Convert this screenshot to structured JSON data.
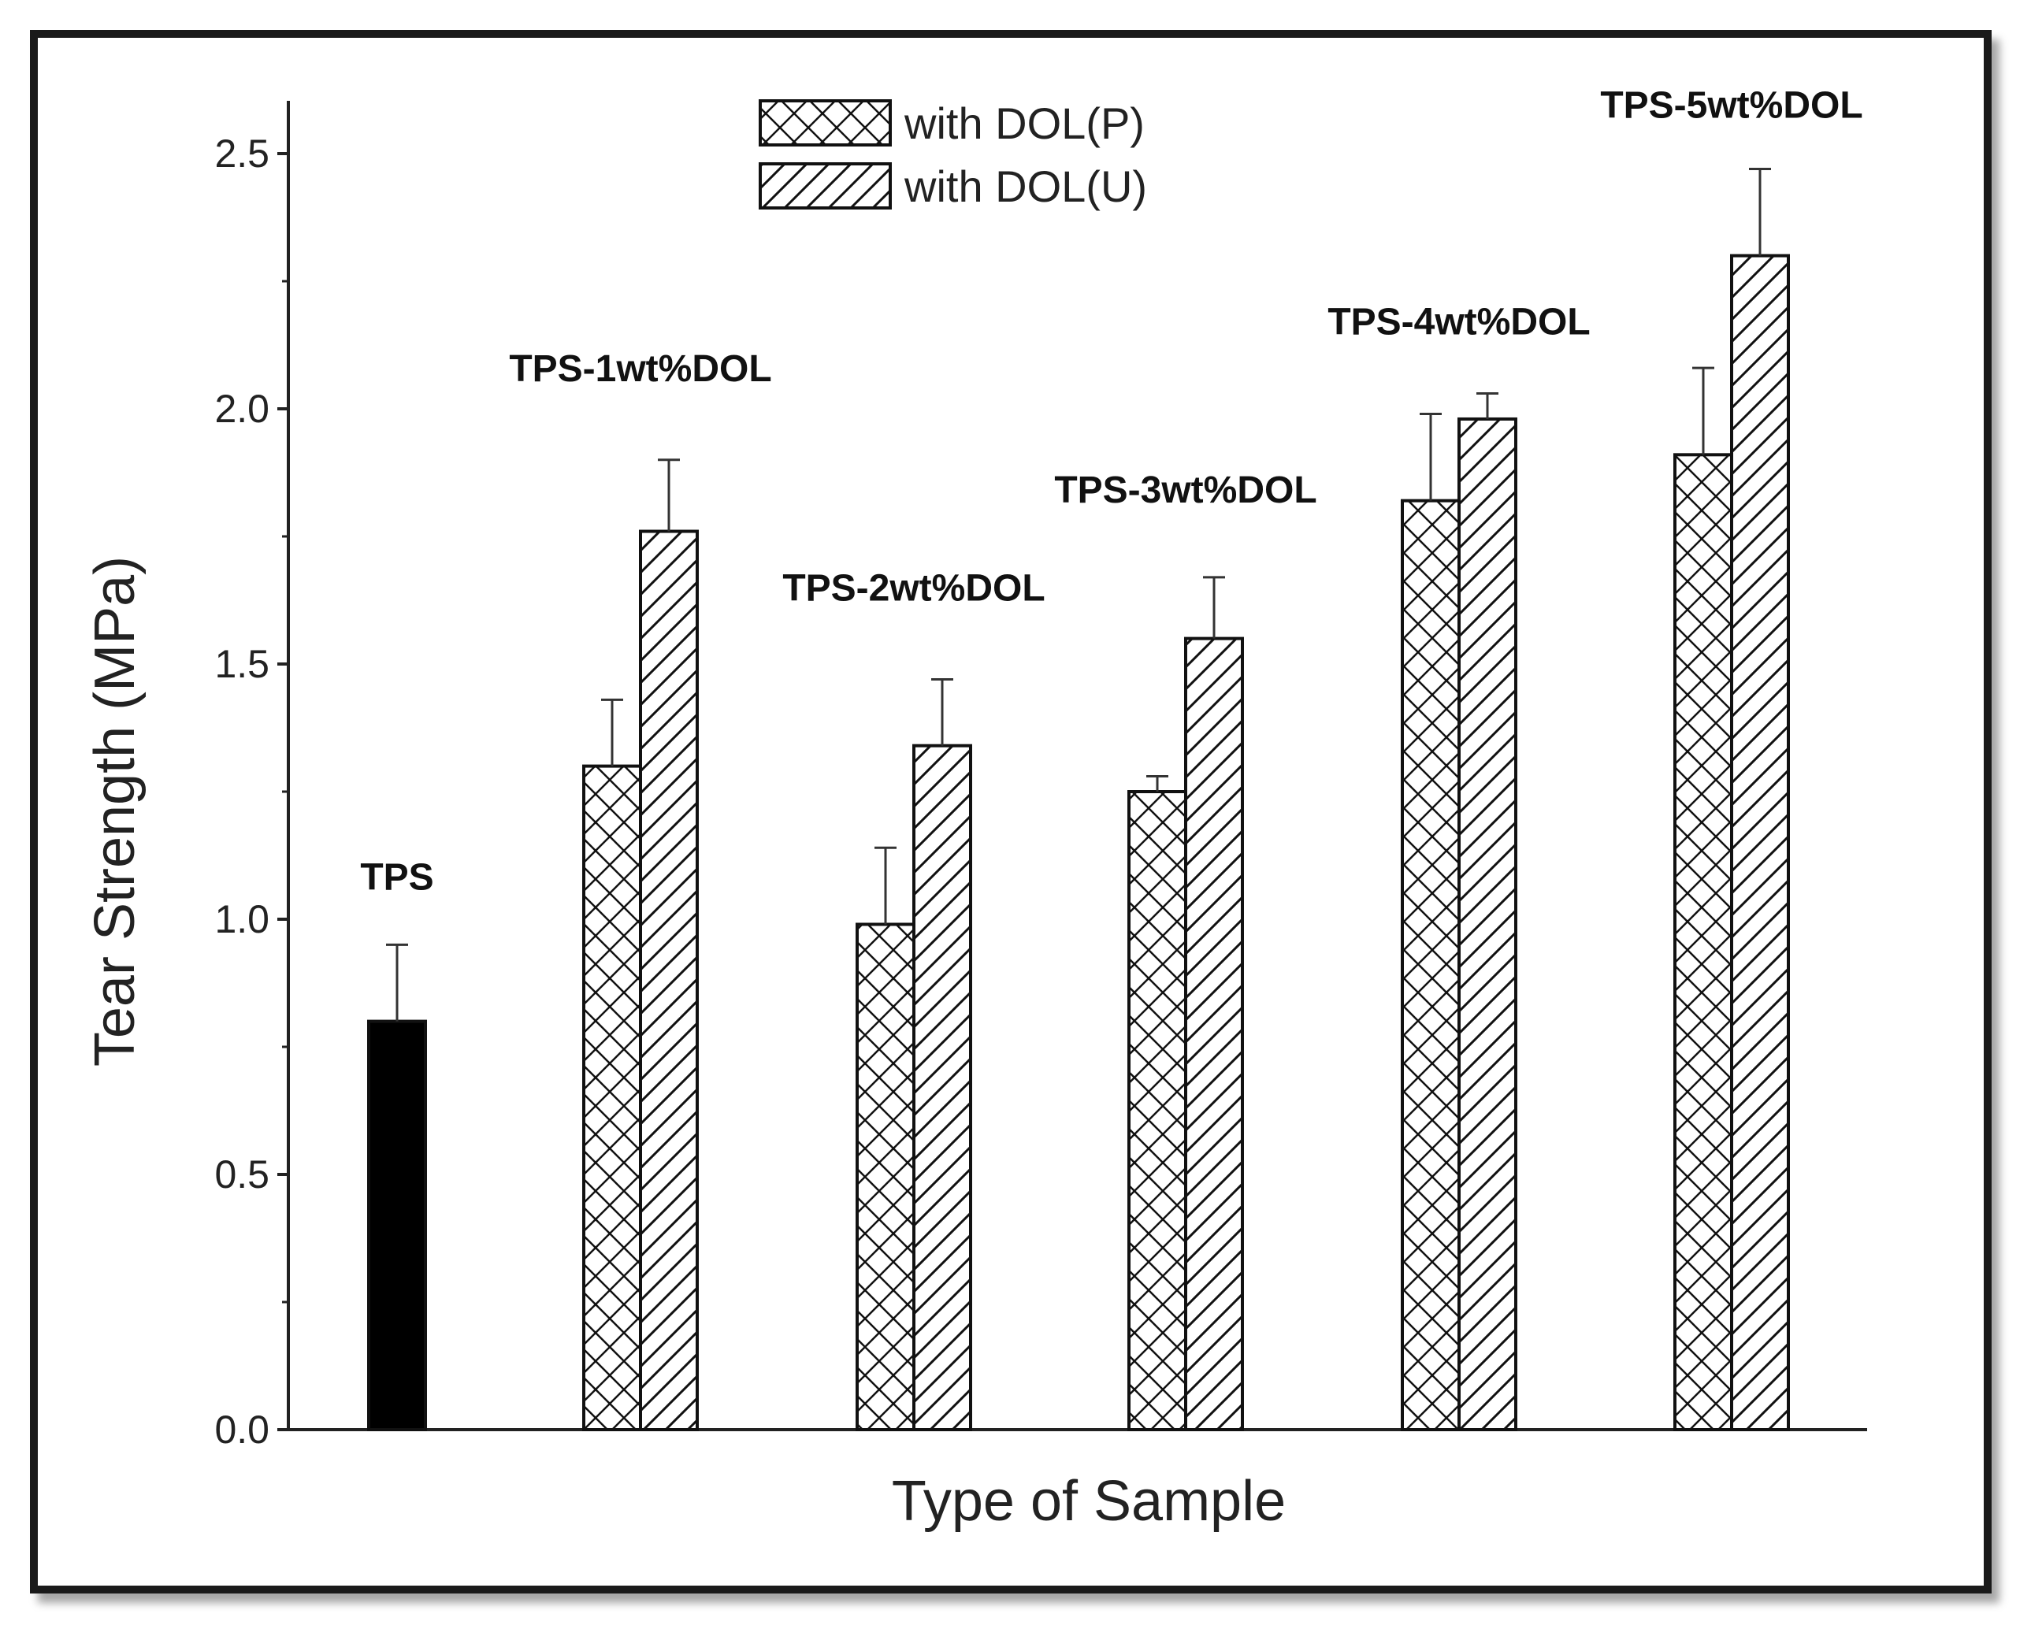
{
  "chart_data": {
    "type": "bar",
    "title": "",
    "xlabel": "Type of Sample",
    "ylabel": "Tear Strength (MPa)",
    "ylim": [
      0,
      2.6
    ],
    "yticks": [
      0.0,
      0.5,
      1.0,
      1.5,
      2.0,
      2.5
    ],
    "ytick_labels": [
      "0.0",
      "0.5",
      "1.0",
      "1.5",
      "2.0",
      "2.5"
    ],
    "grid": false,
    "legend_position": "top-center",
    "categories": [
      "TPS",
      "TPS-1wt%DOL",
      "TPS-2wt%DOL",
      "TPS-3wt%DOL",
      "TPS-4wt%DOL",
      "TPS-5wt%DOL"
    ],
    "series": [
      {
        "name": "TPS",
        "fill": "solid",
        "color": "#000000",
        "show_in_legend": false,
        "values": [
          0.8,
          null,
          null,
          null,
          null,
          null
        ],
        "errors": [
          0.15,
          null,
          null,
          null,
          null,
          null
        ]
      },
      {
        "name": "with DOL(P)",
        "fill": "crosshatch",
        "color": "#000000",
        "show_in_legend": true,
        "values": [
          null,
          1.3,
          0.99,
          1.25,
          1.82,
          1.91
        ],
        "errors": [
          null,
          0.13,
          0.15,
          0.03,
          0.17,
          0.17
        ]
      },
      {
        "name": "with DOL(U)",
        "fill": "diagonal",
        "color": "#000000",
        "show_in_legend": true,
        "values": [
          null,
          1.76,
          1.34,
          1.55,
          1.98,
          2.3
        ],
        "errors": [
          null,
          0.14,
          0.13,
          0.12,
          0.05,
          0.17
        ]
      }
    ]
  }
}
